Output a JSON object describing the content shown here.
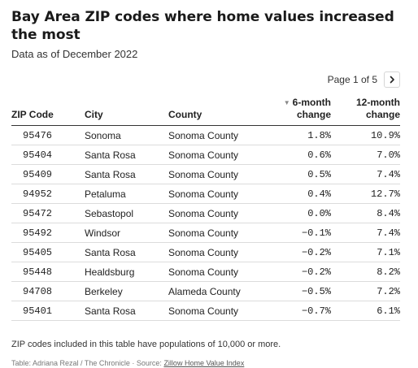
{
  "header": {
    "title": "Bay Area ZIP codes where home values increased the most",
    "subtitle": "Data as of December 2022"
  },
  "pager": {
    "label": "Page 1 of 5",
    "next_icon": "chevron-right-icon"
  },
  "chart_data": {
    "type": "table",
    "sorted_by": "6-month change",
    "sort_direction": "descending",
    "columns": [
      {
        "key": "zip",
        "label": "ZIP Code"
      },
      {
        "key": "city",
        "label": "City"
      },
      {
        "key": "county",
        "label": "County"
      },
      {
        "key": "six_month",
        "label_line1": "6-month",
        "label_line2": "change"
      },
      {
        "key": "twelve_month",
        "label_line1": "12-month",
        "label_line2": "change"
      }
    ],
    "rows": [
      {
        "zip": "95476",
        "city": "Sonoma",
        "county": "Sonoma County",
        "six_month": "1.8%",
        "twelve_month": "10.9%"
      },
      {
        "zip": "95404",
        "city": "Santa Rosa",
        "county": "Sonoma County",
        "six_month": "0.6%",
        "twelve_month": "7.0%"
      },
      {
        "zip": "95409",
        "city": "Santa Rosa",
        "county": "Sonoma County",
        "six_month": "0.5%",
        "twelve_month": "7.4%"
      },
      {
        "zip": "94952",
        "city": "Petaluma",
        "county": "Sonoma County",
        "six_month": "0.4%",
        "twelve_month": "12.7%"
      },
      {
        "zip": "95472",
        "city": "Sebastopol",
        "county": "Sonoma County",
        "six_month": "0.0%",
        "twelve_month": "8.4%"
      },
      {
        "zip": "95492",
        "city": "Windsor",
        "county": "Sonoma County",
        "six_month": "−0.1%",
        "twelve_month": "7.4%"
      },
      {
        "zip": "95405",
        "city": "Santa Rosa",
        "county": "Sonoma County",
        "six_month": "−0.2%",
        "twelve_month": "7.1%"
      },
      {
        "zip": "95448",
        "city": "Healdsburg",
        "county": "Sonoma County",
        "six_month": "−0.2%",
        "twelve_month": "8.2%"
      },
      {
        "zip": "94708",
        "city": "Berkeley",
        "county": "Alameda County",
        "six_month": "−0.5%",
        "twelve_month": "7.2%"
      },
      {
        "zip": "95401",
        "city": "Santa Rosa",
        "county": "Sonoma County",
        "six_month": "−0.7%",
        "twelve_month": "6.1%"
      }
    ]
  },
  "footer": {
    "note": "ZIP codes included in this table have populations of 10,000 or more.",
    "credit_prefix": "Table: Adriana Rezal / The Chronicle · Source: ",
    "credit_link": "Zillow Home Value Index"
  }
}
